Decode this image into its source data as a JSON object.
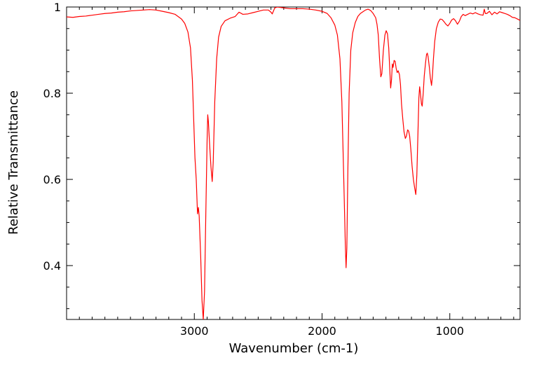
{
  "chart_data": {
    "type": "line",
    "xlabel": "Wavenumber (cm-1)",
    "ylabel": "Relative Transmittance",
    "xlim": [
      4000,
      450
    ],
    "ylim": [
      0.275,
      1.0
    ],
    "x_axis_reversed": true,
    "x_ticks": [
      3000,
      2000,
      1000
    ],
    "x_tick_labels": [
      "3000",
      "2000",
      "1000"
    ],
    "y_ticks": [
      0.4,
      0.6,
      0.8,
      1.0
    ],
    "y_tick_labels": [
      "0.4",
      "0.6",
      "0.8",
      "1"
    ],
    "grid": false,
    "series": [
      {
        "color": "#ff0000",
        "points": [
          [
            4000,
            0.977
          ],
          [
            3950,
            0.976
          ],
          [
            3900,
            0.978
          ],
          [
            3850,
            0.979
          ],
          [
            3800,
            0.981
          ],
          [
            3750,
            0.983
          ],
          [
            3700,
            0.985
          ],
          [
            3650,
            0.986
          ],
          [
            3600,
            0.988
          ],
          [
            3550,
            0.989
          ],
          [
            3500,
            0.991
          ],
          [
            3450,
            0.992
          ],
          [
            3400,
            0.993
          ],
          [
            3350,
            0.994
          ],
          [
            3300,
            0.993
          ],
          [
            3250,
            0.99
          ],
          [
            3200,
            0.987
          ],
          [
            3150,
            0.983
          ],
          [
            3100,
            0.972
          ],
          [
            3075,
            0.962
          ],
          [
            3050,
            0.942
          ],
          [
            3030,
            0.905
          ],
          [
            3015,
            0.83
          ],
          [
            3005,
            0.74
          ],
          [
            2995,
            0.65
          ],
          [
            2985,
            0.6
          ],
          [
            2975,
            0.52
          ],
          [
            2968,
            0.535
          ],
          [
            2962,
            0.515
          ],
          [
            2950,
            0.42
          ],
          [
            2940,
            0.32
          ],
          [
            2930,
            0.275
          ],
          [
            2920,
            0.34
          ],
          [
            2910,
            0.52
          ],
          [
            2900,
            0.69
          ],
          [
            2895,
            0.75
          ],
          [
            2890,
            0.735
          ],
          [
            2880,
            0.68
          ],
          [
            2870,
            0.63
          ],
          [
            2860,
            0.595
          ],
          [
            2852,
            0.64
          ],
          [
            2840,
            0.78
          ],
          [
            2825,
            0.88
          ],
          [
            2810,
            0.93
          ],
          [
            2790,
            0.955
          ],
          [
            2760,
            0.968
          ],
          [
            2720,
            0.974
          ],
          [
            2680,
            0.978
          ],
          [
            2650,
            0.988
          ],
          [
            2620,
            0.983
          ],
          [
            2580,
            0.984
          ],
          [
            2540,
            0.987
          ],
          [
            2500,
            0.99
          ],
          [
            2460,
            0.993
          ],
          [
            2420,
            0.993
          ],
          [
            2400,
            0.988
          ],
          [
            2390,
            0.984
          ],
          [
            2380,
            0.991
          ],
          [
            2370,
            0.998
          ],
          [
            2350,
            1.0
          ],
          [
            2300,
            0.998
          ],
          [
            2250,
            0.996
          ],
          [
            2200,
            0.996
          ],
          [
            2150,
            0.996
          ],
          [
            2100,
            0.995
          ],
          [
            2050,
            0.993
          ],
          [
            2000,
            0.99
          ],
          [
            1960,
            0.985
          ],
          [
            1930,
            0.975
          ],
          [
            1900,
            0.958
          ],
          [
            1880,
            0.935
          ],
          [
            1860,
            0.88
          ],
          [
            1845,
            0.78
          ],
          [
            1830,
            0.6
          ],
          [
            1818,
            0.45
          ],
          [
            1812,
            0.395
          ],
          [
            1806,
            0.44
          ],
          [
            1798,
            0.62
          ],
          [
            1788,
            0.8
          ],
          [
            1775,
            0.9
          ],
          [
            1760,
            0.94
          ],
          [
            1740,
            0.964
          ],
          [
            1720,
            0.978
          ],
          [
            1700,
            0.985
          ],
          [
            1680,
            0.989
          ],
          [
            1660,
            0.993
          ],
          [
            1640,
            0.995
          ],
          [
            1620,
            0.992
          ],
          [
            1600,
            0.985
          ],
          [
            1580,
            0.975
          ],
          [
            1570,
            0.96
          ],
          [
            1560,
            0.935
          ],
          [
            1550,
            0.88
          ],
          [
            1540,
            0.838
          ],
          [
            1532,
            0.845
          ],
          [
            1520,
            0.9
          ],
          [
            1508,
            0.935
          ],
          [
            1498,
            0.945
          ],
          [
            1488,
            0.938
          ],
          [
            1478,
            0.905
          ],
          [
            1470,
            0.855
          ],
          [
            1463,
            0.812
          ],
          [
            1456,
            0.832
          ],
          [
            1450,
            0.868
          ],
          [
            1444,
            0.86
          ],
          [
            1436,
            0.876
          ],
          [
            1428,
            0.874
          ],
          [
            1420,
            0.858
          ],
          [
            1412,
            0.848
          ],
          [
            1404,
            0.852
          ],
          [
            1394,
            0.843
          ],
          [
            1386,
            0.82
          ],
          [
            1378,
            0.775
          ],
          [
            1368,
            0.74
          ],
          [
            1358,
            0.71
          ],
          [
            1348,
            0.695
          ],
          [
            1340,
            0.7
          ],
          [
            1330,
            0.715
          ],
          [
            1322,
            0.712
          ],
          [
            1314,
            0.7
          ],
          [
            1305,
            0.67
          ],
          [
            1295,
            0.63
          ],
          [
            1285,
            0.6
          ],
          [
            1275,
            0.58
          ],
          [
            1266,
            0.565
          ],
          [
            1258,
            0.61
          ],
          [
            1250,
            0.7
          ],
          [
            1242,
            0.79
          ],
          [
            1236,
            0.815
          ],
          [
            1230,
            0.8
          ],
          [
            1222,
            0.775
          ],
          [
            1216,
            0.77
          ],
          [
            1208,
            0.8
          ],
          [
            1200,
            0.84
          ],
          [
            1190,
            0.87
          ],
          [
            1182,
            0.89
          ],
          [
            1176,
            0.893
          ],
          [
            1170,
            0.885
          ],
          [
            1160,
            0.86
          ],
          [
            1152,
            0.835
          ],
          [
            1143,
            0.818
          ],
          [
            1136,
            0.84
          ],
          [
            1128,
            0.88
          ],
          [
            1118,
            0.92
          ],
          [
            1105,
            0.95
          ],
          [
            1090,
            0.965
          ],
          [
            1075,
            0.972
          ],
          [
            1060,
            0.971
          ],
          [
            1045,
            0.966
          ],
          [
            1030,
            0.96
          ],
          [
            1015,
            0.956
          ],
          [
            1000,
            0.962
          ],
          [
            985,
            0.97
          ],
          [
            970,
            0.973
          ],
          [
            955,
            0.968
          ],
          [
            940,
            0.96
          ],
          [
            925,
            0.967
          ],
          [
            910,
            0.978
          ],
          [
            895,
            0.983
          ],
          [
            880,
            0.98
          ],
          [
            860,
            0.983
          ],
          [
            840,
            0.986
          ],
          [
            820,
            0.984
          ],
          [
            800,
            0.987
          ],
          [
            780,
            0.984
          ],
          [
            760,
            0.982
          ],
          [
            740,
            0.981
          ],
          [
            730,
            0.995
          ],
          [
            722,
            0.985
          ],
          [
            710,
            0.985
          ],
          [
            690,
            0.99
          ],
          [
            670,
            0.982
          ],
          [
            650,
            0.988
          ],
          [
            630,
            0.984
          ],
          [
            610,
            0.989
          ],
          [
            590,
            0.987
          ],
          [
            570,
            0.985
          ],
          [
            550,
            0.983
          ],
          [
            530,
            0.98
          ],
          [
            510,
            0.976
          ],
          [
            490,
            0.975
          ],
          [
            470,
            0.972
          ],
          [
            450,
            0.969
          ]
        ]
      }
    ]
  }
}
